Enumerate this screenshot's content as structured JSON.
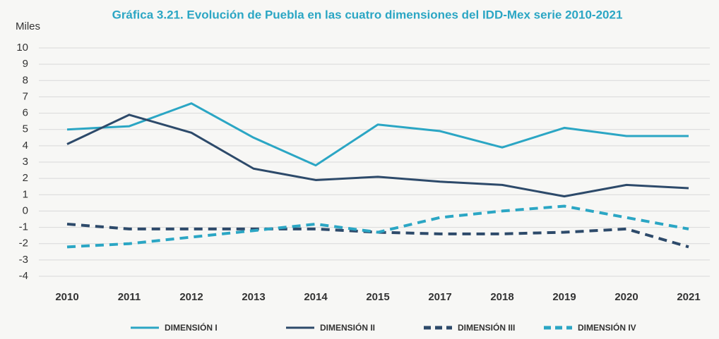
{
  "chart_data": {
    "type": "line",
    "title": "Gráfica 3.21. Evolución de Puebla en las cuatro dimensiones del IDD-Mex serie 2010-2021",
    "y_label": "Miles",
    "categories": [
      "2010",
      "2011",
      "2012",
      "2013",
      "2014",
      "2015",
      "2017",
      "2018",
      "2019",
      "2020",
      "2021"
    ],
    "series": [
      {
        "name": "DIMENSIÓN I",
        "color": "#2ba6c4",
        "style": "solid",
        "values": [
          5.0,
          5.2,
          6.6,
          4.5,
          2.8,
          5.3,
          4.9,
          3.9,
          5.1,
          4.6,
          4.6
        ]
      },
      {
        "name": "DIMENSIÓN II",
        "color": "#2d4a6a",
        "style": "solid",
        "values": [
          4.1,
          5.9,
          4.8,
          2.6,
          1.9,
          2.1,
          1.8,
          1.6,
          0.9,
          1.6,
          1.4
        ]
      },
      {
        "name": "DIMENSIÓN III",
        "color": "#2d4a6a",
        "style": "dashed",
        "values": [
          -0.8,
          -1.1,
          -1.1,
          -1.1,
          -1.1,
          -1.3,
          -1.4,
          -1.4,
          -1.3,
          -1.1,
          -2.2
        ]
      },
      {
        "name": "DIMENSIÓN IV",
        "color": "#2ba6c4",
        "style": "dashed",
        "values": [
          -2.2,
          -2.0,
          -1.6,
          -1.2,
          -0.8,
          -1.3,
          -0.4,
          0.0,
          0.3,
          -0.4,
          -1.1
        ]
      }
    ],
    "ylim": [
      -4,
      10
    ],
    "yticks": [
      -4,
      -3,
      -2,
      -1,
      0,
      1,
      2,
      3,
      4,
      5,
      6,
      7,
      8,
      9,
      10
    ],
    "grid": true,
    "legend": "bottom"
  }
}
